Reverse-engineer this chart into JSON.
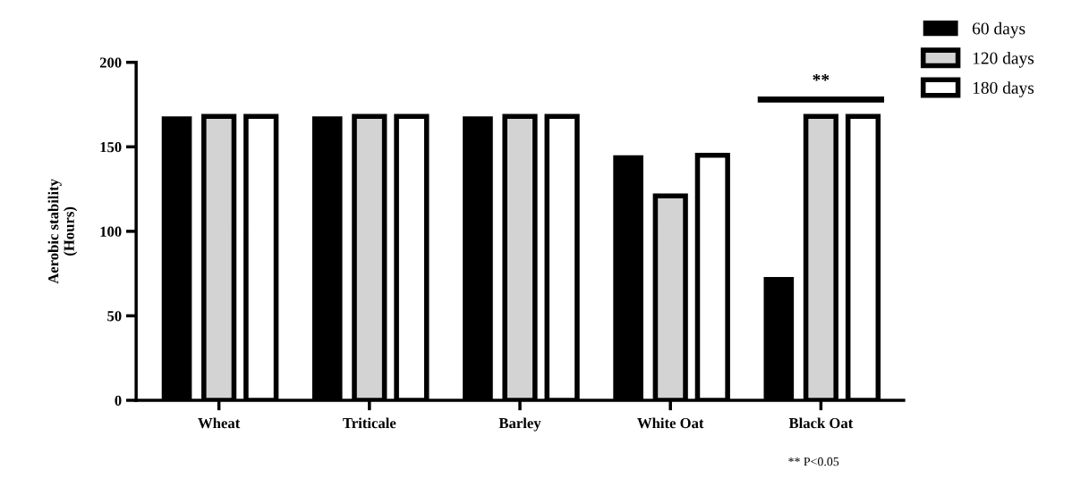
{
  "chart_data": {
    "type": "bar",
    "ylabel": "Aerobic stability\n(Hours)",
    "categories": [
      "Wheat",
      "Triticale",
      "Barley",
      "White Oat",
      "Black Oat"
    ],
    "series": [
      {
        "name": "60 days",
        "color": "#000000",
        "values": [
          168,
          168,
          168,
          145,
          73
        ]
      },
      {
        "name": "120 days",
        "color": "#d3d3d3",
        "values": [
          168,
          168,
          168,
          121,
          168
        ]
      },
      {
        "name": "180 days",
        "color": "#ffffff",
        "values": [
          168,
          168,
          168,
          145,
          168
        ]
      }
    ],
    "ylim": [
      0,
      200
    ],
    "yticks": [
      0,
      50,
      100,
      150,
      200
    ],
    "grid": false,
    "legend": "top right",
    "annotations": [
      "**",
      "** P<0.05"
    ]
  }
}
